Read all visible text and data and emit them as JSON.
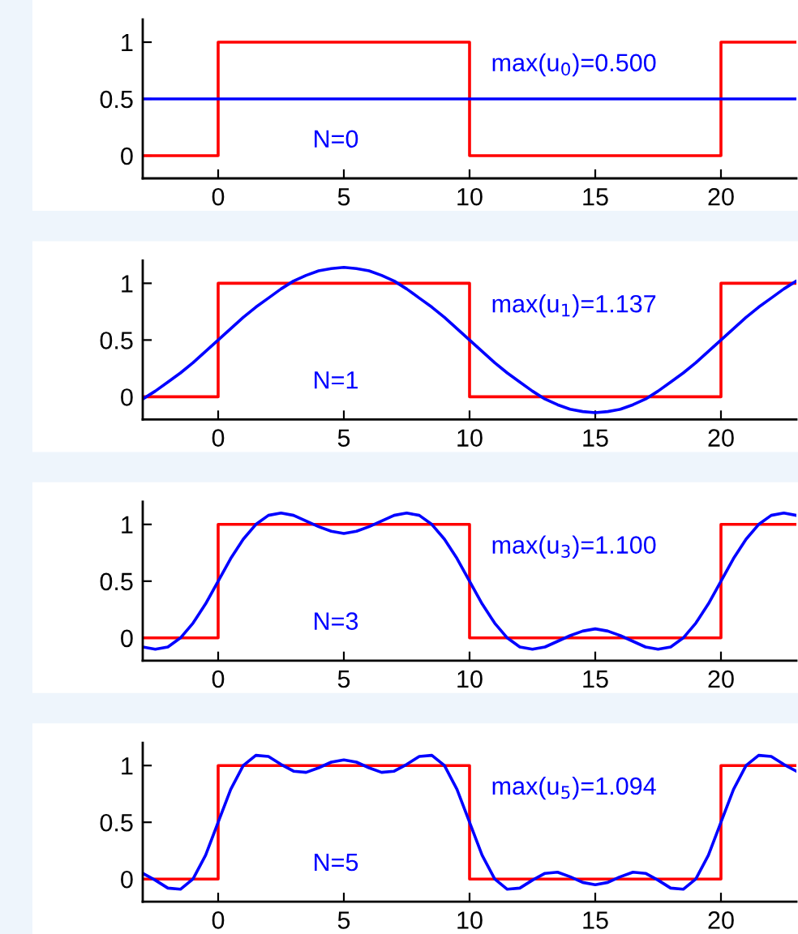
{
  "chart_data": [
    {
      "type": "line",
      "x": [
        -3,
        -2.5,
        -2,
        -1.5,
        -1,
        -0.5,
        0,
        0.5,
        1,
        1.5,
        2,
        2.5,
        3,
        3.5,
        4,
        4.5,
        5,
        5.5,
        6,
        6.5,
        7,
        7.5,
        8,
        8.5,
        9,
        9.5,
        10,
        10.5,
        11,
        11.5,
        12,
        12.5,
        13,
        13.5,
        14,
        14.5,
        15,
        15.5,
        16,
        16.5,
        17,
        17.5,
        18,
        18.5,
        19,
        19.5,
        20,
        20.5,
        21,
        21.5,
        22,
        22.5,
        23
      ],
      "series": [
        {
          "type": "step",
          "color": "#ff0000",
          "x": [
            -3,
            0,
            10,
            20,
            23
          ],
          "values": [
            0,
            1,
            0,
            1,
            1
          ]
        },
        {
          "color": "#0000ff",
          "values": [
            0.5,
            0.5,
            0.5,
            0.5,
            0.5,
            0.5,
            0.5,
            0.5,
            0.5,
            0.5,
            0.5,
            0.5,
            0.5,
            0.5,
            0.5,
            0.5,
            0.5,
            0.5,
            0.5,
            0.5,
            0.5,
            0.5,
            0.5,
            0.5,
            0.5,
            0.5,
            0.5,
            0.5,
            0.5,
            0.5,
            0.5,
            0.5,
            0.5,
            0.5,
            0.5,
            0.5,
            0.5,
            0.5,
            0.5,
            0.5,
            0.5,
            0.5,
            0.5,
            0.5,
            0.5,
            0.5,
            0.5,
            0.5,
            0.5,
            0.5,
            0.5,
            0.5,
            0.5
          ]
        }
      ],
      "xlim": [
        -3,
        23
      ],
      "xticks": [
        0,
        5,
        10,
        15,
        20
      ],
      "ylim": [
        -0.2,
        1.2
      ],
      "yticks": [
        0,
        0.5,
        1
      ],
      "grid": false,
      "annotations": [
        "max(u$_{0}$)=0.500",
        "N=0"
      ]
    },
    {
      "type": "line",
      "x": [
        -3,
        -2.5,
        -2,
        -1.5,
        -1,
        -0.5,
        0,
        0.5,
        1,
        1.5,
        2,
        2.5,
        3,
        3.5,
        4,
        4.5,
        5,
        5.5,
        6,
        6.5,
        7,
        7.5,
        8,
        8.5,
        9,
        9.5,
        10,
        10.5,
        11,
        11.5,
        12,
        12.5,
        13,
        13.5,
        14,
        14.5,
        15,
        15.5,
        16,
        16.5,
        17,
        17.5,
        18,
        18.5,
        19,
        19.5,
        20,
        20.5,
        21,
        21.5,
        22,
        22.5,
        23
      ],
      "series": [
        {
          "type": "step",
          "color": "#ff0000",
          "x": [
            -3,
            0,
            10,
            20,
            23
          ],
          "values": [
            0,
            1,
            0,
            1,
            1
          ]
        },
        {
          "color": "#0000ff",
          "values": [
            -0.02,
            0.05,
            0.13,
            0.21,
            0.3,
            0.4,
            0.5,
            0.6,
            0.7,
            0.79,
            0.87,
            0.95,
            1.02,
            1.07,
            1.11,
            1.13,
            1.14,
            1.13,
            1.11,
            1.07,
            1.02,
            0.95,
            0.87,
            0.79,
            0.7,
            0.6,
            0.5,
            0.4,
            0.3,
            0.21,
            0.13,
            0.05,
            -0.02,
            -0.07,
            -0.11,
            -0.13,
            -0.14,
            -0.13,
            -0.11,
            -0.07,
            -0.02,
            0.05,
            0.13,
            0.21,
            0.3,
            0.4,
            0.5,
            0.6,
            0.7,
            0.79,
            0.87,
            0.95,
            1.02
          ]
        }
      ],
      "xlim": [
        -3,
        23
      ],
      "xticks": [
        0,
        5,
        10,
        15,
        20
      ],
      "ylim": [
        -0.2,
        1.2
      ],
      "yticks": [
        0,
        0.5,
        1
      ],
      "grid": false,
      "annotations": [
        "max(u$_{1}$)=1.137",
        "N=1"
      ]
    },
    {
      "type": "line",
      "x": [
        -3,
        -2.5,
        -2,
        -1.5,
        -1,
        -0.5,
        0,
        0.5,
        1,
        1.5,
        2,
        2.5,
        3,
        3.5,
        4,
        4.5,
        5,
        5.5,
        6,
        6.5,
        7,
        7.5,
        8,
        8.5,
        9,
        9.5,
        10,
        10.5,
        11,
        11.5,
        12,
        12.5,
        13,
        13.5,
        14,
        14.5,
        15,
        15.5,
        16,
        16.5,
        17,
        17.5,
        18,
        18.5,
        19,
        19.5,
        20,
        20.5,
        21,
        21.5,
        22,
        22.5,
        23
      ],
      "series": [
        {
          "type": "step",
          "color": "#ff0000",
          "x": [
            -3,
            0,
            10,
            20,
            23
          ],
          "values": [
            0,
            1,
            0,
            1,
            1
          ]
        },
        {
          "color": "#0000ff",
          "values": [
            -0.08,
            -0.1,
            -0.08,
            0,
            0.13,
            0.3,
            0.5,
            0.7,
            0.87,
            1,
            1.08,
            1.1,
            1.08,
            1.03,
            0.98,
            0.94,
            0.92,
            0.94,
            0.98,
            1.03,
            1.08,
            1.1,
            1.08,
            1,
            0.87,
            0.7,
            0.5,
            0.3,
            0.13,
            0,
            -0.08,
            -0.1,
            -0.08,
            -0.03,
            0.02,
            0.06,
            0.08,
            0.06,
            0.02,
            -0.03,
            -0.08,
            -0.1,
            -0.08,
            0,
            0.13,
            0.3,
            0.5,
            0.7,
            0.87,
            1,
            1.08,
            1.1,
            1.08
          ]
        }
      ],
      "xlim": [
        -3,
        23
      ],
      "xticks": [
        0,
        5,
        10,
        15,
        20
      ],
      "ylim": [
        -0.2,
        1.2
      ],
      "yticks": [
        0,
        0.5,
        1
      ],
      "grid": false,
      "annotations": [
        "max(u$_{3}$)=1.100",
        "N=3"
      ]
    },
    {
      "type": "line",
      "x": [
        -3,
        -2.5,
        -2,
        -1.5,
        -1,
        -0.5,
        0,
        0.5,
        1,
        1.5,
        2,
        2.5,
        3,
        3.5,
        4,
        4.5,
        5,
        5.5,
        6,
        6.5,
        7,
        7.5,
        8,
        8.5,
        9,
        9.5,
        10,
        10.5,
        11,
        11.5,
        12,
        12.5,
        13,
        13.5,
        14,
        14.5,
        15,
        15.5,
        16,
        16.5,
        17,
        17.5,
        18,
        18.5,
        19,
        19.5,
        20,
        20.5,
        21,
        21.5,
        22,
        22.5,
        23
      ],
      "series": [
        {
          "type": "step",
          "color": "#ff0000",
          "x": [
            -3,
            0,
            10,
            20,
            23
          ],
          "values": [
            0,
            1,
            0,
            1,
            1
          ]
        },
        {
          "color": "#0000ff",
          "values": [
            0.05,
            -0.01,
            -0.08,
            -0.09,
            0,
            0.21,
            0.5,
            0.79,
            1,
            1.09,
            1.08,
            1.01,
            0.95,
            0.94,
            0.98,
            1.03,
            1.05,
            1.03,
            0.98,
            0.94,
            0.95,
            1.01,
            1.08,
            1.09,
            1,
            0.79,
            0.5,
            0.21,
            0,
            -0.09,
            -0.08,
            -0.01,
            0.05,
            0.06,
            0.02,
            -0.03,
            -0.05,
            -0.03,
            0.02,
            0.06,
            0.05,
            -0.01,
            -0.08,
            -0.09,
            0,
            0.21,
            0.5,
            0.79,
            1,
            1.09,
            1.08,
            1.01,
            0.95
          ]
        }
      ],
      "xlim": [
        -3,
        23
      ],
      "xticks": [
        0,
        5,
        10,
        15,
        20
      ],
      "ylim": [
        -0.2,
        1.2
      ],
      "yticks": [
        0,
        0.5,
        1
      ],
      "grid": false,
      "annotations": [
        "max(u$_{5}$)=1.094",
        "N=5"
      ]
    }
  ]
}
